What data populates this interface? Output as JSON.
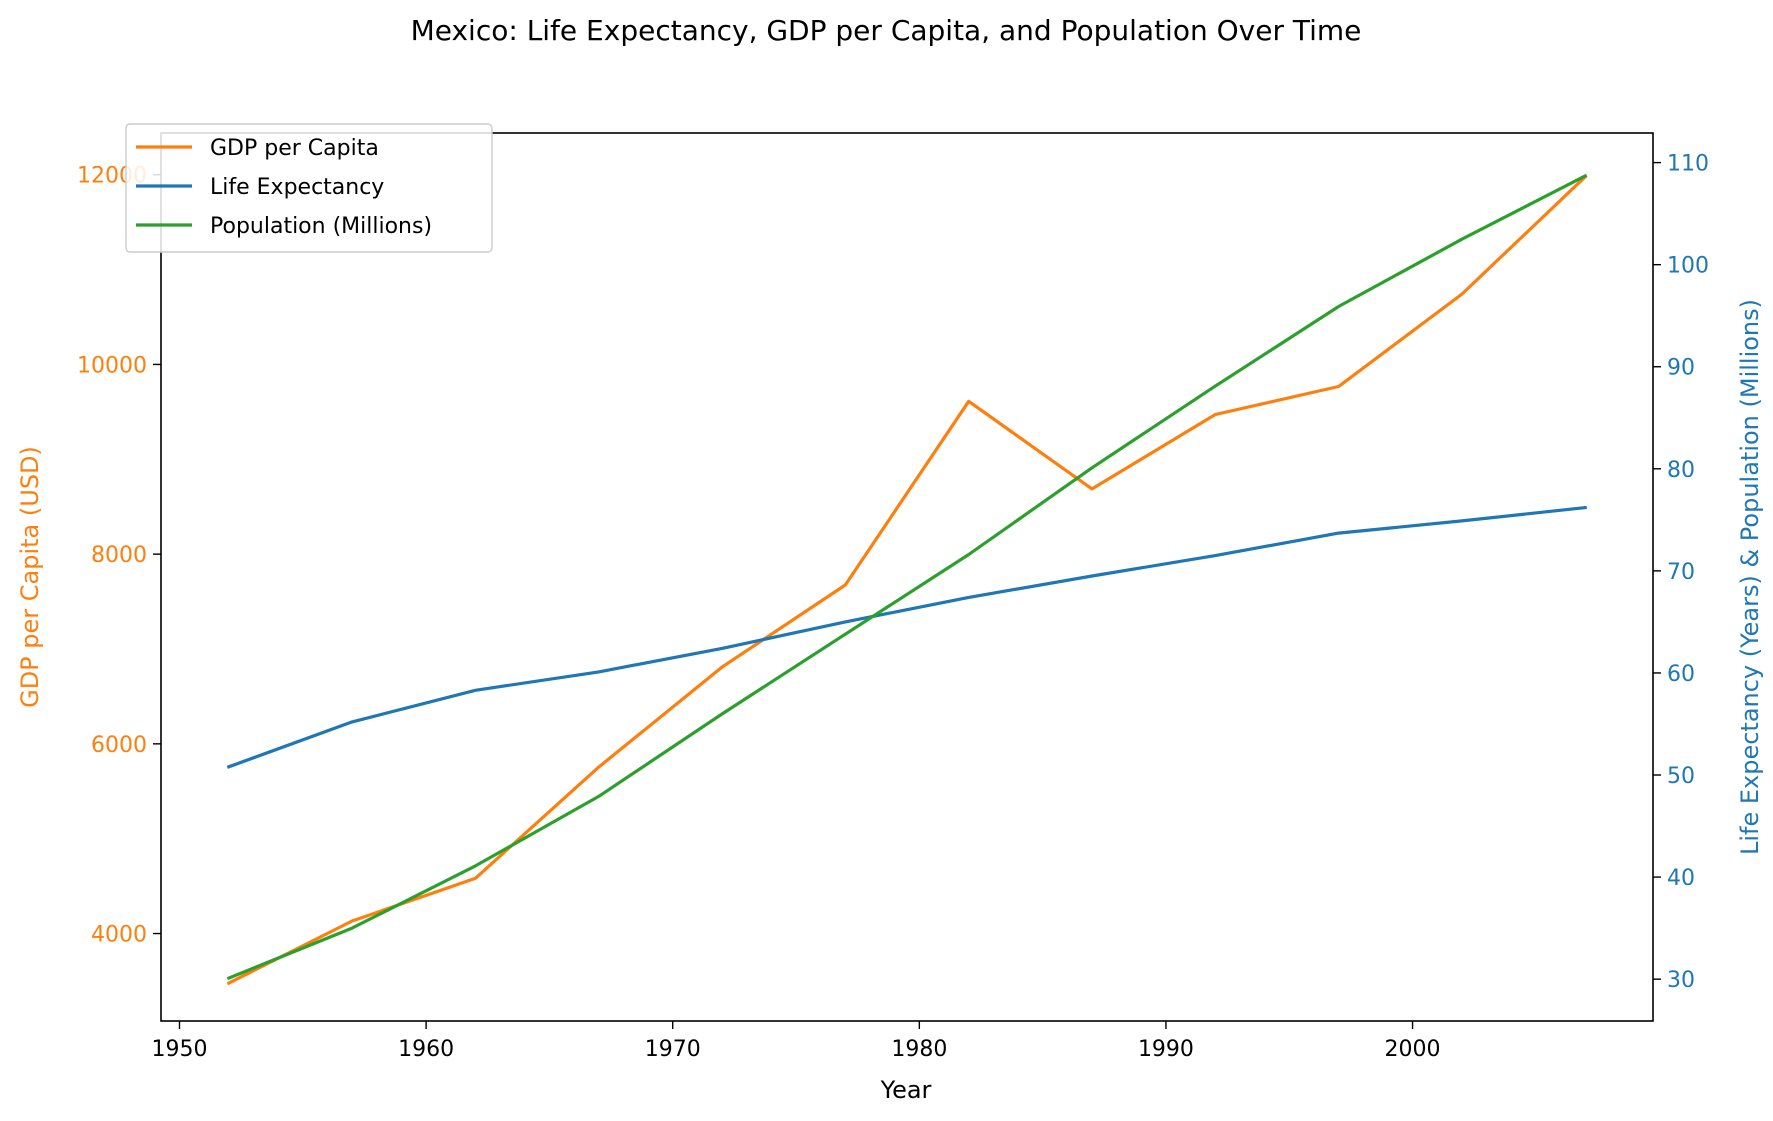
{
  "chart_data": {
    "type": "line",
    "title": "Mexico: Life Expectancy, GDP per Capita, and Population Over Time",
    "xlabel": "Year",
    "ylabel_left": "GDP per Capita (USD)",
    "ylabel_right": "Life Expectancy (Years) & Population (Millions)",
    "xlim": [
      1949.25,
      2009.75
    ],
    "ylim_left": [
      3078,
      12440
    ],
    "ylim_right": [
      25.9,
      112.9
    ],
    "x_ticks": [
      1950,
      1960,
      1970,
      1980,
      1990,
      2000
    ],
    "y_left_ticks": [
      4000,
      6000,
      8000,
      10000,
      12000
    ],
    "y_right_ticks": [
      30,
      40,
      50,
      60,
      70,
      80,
      90,
      100,
      110
    ],
    "grid": false,
    "legend_position": "upper left",
    "x": [
      1952,
      1957,
      1962,
      1967,
      1972,
      1977,
      1982,
      1987,
      1992,
      1997,
      2002,
      2007
    ],
    "series": [
      {
        "name": "GDP per Capita",
        "axis": "left",
        "color": "#ff7f0e",
        "values": [
          3478,
          4132,
          4582,
          5755,
          6809,
          7675,
          9611,
          8688,
          9472,
          9767,
          10742,
          11978
        ]
      },
      {
        "name": "Life Expectancy",
        "axis": "right",
        "color": "#1f77b4",
        "values": [
          50.8,
          55.2,
          58.3,
          60.1,
          62.4,
          65.0,
          67.4,
          69.5,
          71.5,
          73.7,
          74.9,
          76.2
        ]
      },
      {
        "name": "Population (Millions)",
        "axis": "right",
        "color": "#2ca02c",
        "values": [
          30.1,
          35.0,
          41.1,
          47.9,
          55.98,
          63.8,
          71.6,
          80.1,
          88.1,
          95.9,
          102.5,
          108.7
        ]
      }
    ]
  },
  "colors": {
    "left_axis": "#ff7f0e",
    "right_axis": "#1f77b4",
    "text": "#000000"
  }
}
